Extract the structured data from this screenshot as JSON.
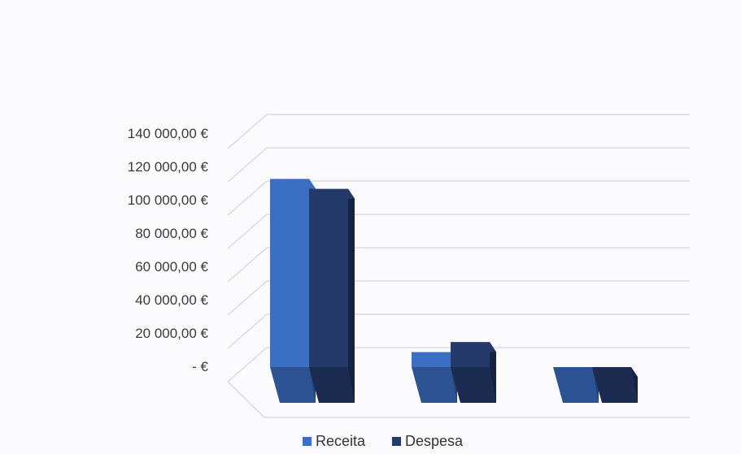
{
  "chart_data": {
    "type": "bar",
    "style": "3d-clustered-column",
    "categories": [
      "",
      "",
      ""
    ],
    "series": [
      {
        "name": "Receita",
        "color": "#3b6fc4",
        "values": [
          113000,
          9000,
          0
        ]
      },
      {
        "name": "Despesa",
        "color": "#243a6b",
        "values": [
          107000,
          15000,
          0
        ]
      }
    ],
    "ylim": [
      0,
      140000
    ],
    "ytick_values": [
      0,
      20000,
      40000,
      60000,
      80000,
      100000,
      120000,
      140000
    ],
    "ytick_labels": [
      "-   €",
      "20 000,00 €",
      "40 000,00 €",
      "60 000,00 €",
      "80 000,00 €",
      "100 000,00 €",
      "120 000,00 €",
      "140 000,00 €"
    ],
    "grid": true,
    "legend_position": "bottom"
  },
  "legend": {
    "receita_label": "Receita",
    "despesa_label": "Despesa"
  }
}
